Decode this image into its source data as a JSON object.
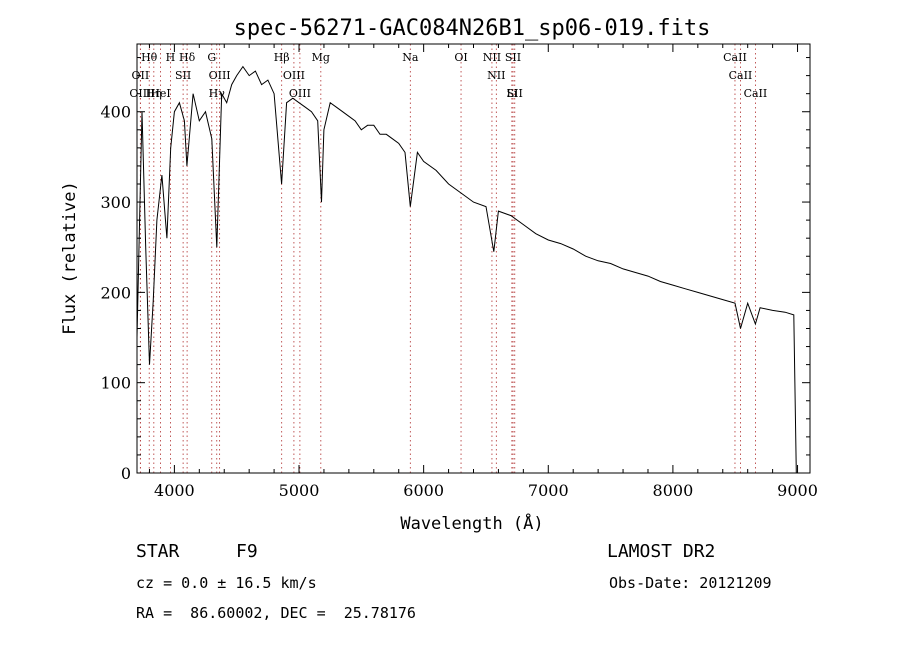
{
  "chart_data": {
    "type": "line",
    "title": "spec-56271-GAC084N26B1_sp06-019.fits",
    "xlabel": "Wavelength (Å)",
    "ylabel": "Flux (relative)",
    "xlim": [
      3700,
      9100
    ],
    "ylim": [
      0,
      475
    ],
    "xticks": [
      4000,
      5000,
      6000,
      7000,
      8000,
      9000
    ],
    "yticks": [
      0,
      100,
      200,
      300,
      400
    ],
    "x": [
      3700,
      3740,
      3770,
      3800,
      3830,
      3860,
      3900,
      3940,
      3970,
      4000,
      4040,
      4080,
      4100,
      4150,
      4200,
      4250,
      4300,
      4340,
      4380,
      4420,
      4460,
      4500,
      4550,
      4600,
      4650,
      4700,
      4750,
      4800,
      4860,
      4900,
      4950,
      5000,
      5050,
      5100,
      5150,
      5180,
      5200,
      5250,
      5300,
      5350,
      5400,
      5450,
      5500,
      5550,
      5600,
      5650,
      5700,
      5750,
      5800,
      5850,
      5893,
      5950,
      6000,
      6100,
      6200,
      6300,
      6400,
      6500,
      6563,
      6600,
      6700,
      6800,
      6900,
      7000,
      7100,
      7200,
      7300,
      7400,
      7500,
      7600,
      7700,
      7800,
      7900,
      8000,
      8100,
      8200,
      8300,
      8400,
      8498,
      8542,
      8600,
      8662,
      8700,
      8800,
      8900,
      8970,
      8990
    ],
    "y": [
      150,
      400,
      250,
      120,
      190,
      280,
      330,
      260,
      360,
      400,
      410,
      390,
      340,
      420,
      390,
      400,
      370,
      250,
      420,
      410,
      430,
      440,
      450,
      440,
      445,
      430,
      435,
      420,
      320,
      410,
      415,
      410,
      405,
      400,
      390,
      300,
      380,
      410,
      405,
      400,
      395,
      390,
      380,
      385,
      385,
      375,
      375,
      370,
      365,
      355,
      295,
      355,
      345,
      335,
      320,
      310,
      300,
      295,
      245,
      290,
      285,
      275,
      265,
      258,
      254,
      248,
      240,
      235,
      232,
      226,
      222,
      218,
      212,
      208,
      204,
      200,
      196,
      192,
      188,
      160,
      188,
      165,
      183,
      180,
      178,
      175,
      0
    ],
    "annotations": [
      {
        "label": "Hθ",
        "x": 3798
      },
      {
        "label": "OII",
        "x": 3727
      },
      {
        "label": "OIII",
        "x": 3727
      },
      {
        "label": "HeI",
        "x": 3889
      },
      {
        "label": "Hη",
        "x": 3835
      },
      {
        "label": "H",
        "x": 3968
      },
      {
        "label": "Hδ",
        "x": 4102
      },
      {
        "label": "SII",
        "x": 4070
      },
      {
        "label": "G",
        "x": 4300
      },
      {
        "label": "OIII",
        "x": 4363
      },
      {
        "label": "Hγ",
        "x": 4340
      },
      {
        "label": "Hβ",
        "x": 4861
      },
      {
        "label": "OIII",
        "x": 4959
      },
      {
        "label": "OIII",
        "x": 5007
      },
      {
        "label": "Mg",
        "x": 5175
      },
      {
        "label": "Na",
        "x": 5893
      },
      {
        "label": "OI",
        "x": 6300
      },
      {
        "label": "NII",
        "x": 6548
      },
      {
        "label": "NII",
        "x": 6583
      },
      {
        "label": "SII",
        "x": 6717
      },
      {
        "label": "SII",
        "x": 6731
      },
      {
        "label": "Li",
        "x": 6708
      },
      {
        "label": "CaII",
        "x": 8498
      },
      {
        "label": "CaII",
        "x": 8542
      },
      {
        "label": "CaII",
        "x": 8662
      }
    ]
  },
  "info": {
    "class_label": "STAR",
    "subclass": "F9",
    "survey": "LAMOST DR2",
    "cz": "cz = 0.0 ± 16.5 km/s",
    "obs_date": "Obs-Date: 20121209",
    "radec": "RA =  86.60002, DEC =  25.78176"
  }
}
